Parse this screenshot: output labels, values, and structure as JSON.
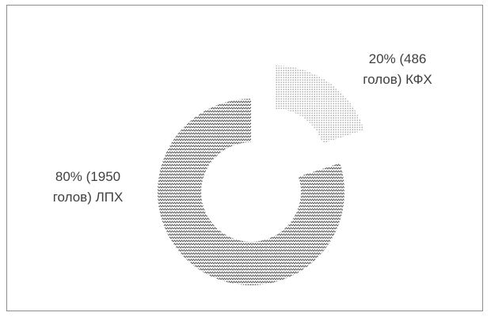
{
  "chart_data": {
    "type": "pie",
    "variant": "doughnut",
    "slices": [
      {
        "name": "КФХ",
        "percent": 20,
        "count": 486,
        "pattern": "dots",
        "exploded": true,
        "label_lines": [
          "20% (486",
          "голов) КФХ"
        ]
      },
      {
        "name": "ЛПХ",
        "percent": 80,
        "count": 1950,
        "pattern": "zigzag",
        "exploded": false,
        "label_lines": [
          "80% (1950",
          "голов) ЛПХ"
        ]
      }
    ],
    "start_angle_deg": 0,
    "legend": "none",
    "colors": {
      "pattern": "#555555",
      "background": "#ffffff",
      "frame": "#8c8c8c",
      "text": "#404040"
    }
  }
}
